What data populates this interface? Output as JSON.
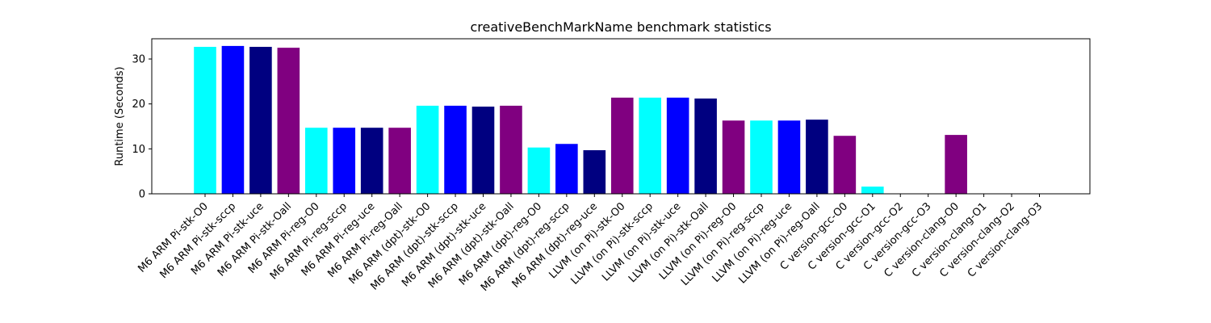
{
  "chart_data": {
    "type": "bar",
    "title": "creativeBenchMarkName benchmark statistics",
    "xlabel": "",
    "ylabel": "Runtime (Seconds)",
    "ylim": [
      0,
      34.5
    ],
    "yticks": [
      0,
      10,
      20,
      30
    ],
    "grid": false,
    "categories": [
      "M6 ARM Pi-stk-O0",
      "M6 ARM Pi-stk-sccp",
      "M6 ARM Pi-stk-uce",
      "M6 ARM Pi-stk-Oall",
      "M6 ARM Pi-reg-O0",
      "M6 ARM Pi-reg-sccp",
      "M6 ARM Pi-reg-uce",
      "M6 ARM Pi-reg-Oall",
      "M6 ARM (dpt)-stk-O0",
      "M6 ARM (dpt)-stk-sccp",
      "M6 ARM (dpt)-stk-uce",
      "M6 ARM (dpt)-stk-Oall",
      "M6 ARM (dpt)-reg-O0",
      "M6 ARM (dpt)-reg-sccp",
      "M6 ARM (dpt)-reg-uce",
      "LLVM (on Pi)-stk-O0",
      "LLVM (on Pi)-stk-sccp",
      "LLVM (on Pi)-stk-uce",
      "LLVM (on Pi)-stk-Oall",
      "LLVM (on Pi)-reg-O0",
      "LLVM (on Pi)-reg-sccp",
      "LLVM (on Pi)-reg-uce",
      "LLVM (on Pi)-reg-Oall",
      "C version-gcc-O0",
      "C version-gcc-O1",
      "C version-gcc-O2",
      "C version-gcc-O3",
      "C version-clang-O0",
      "C version-clang-O1",
      "C version-clang-O2",
      "C version-clang-O3"
    ],
    "values": [
      32.7,
      32.9,
      32.7,
      32.5,
      14.7,
      14.7,
      14.7,
      14.7,
      19.6,
      19.6,
      19.4,
      19.6,
      10.3,
      11.1,
      9.7,
      21.4,
      21.4,
      21.4,
      21.2,
      16.3,
      16.3,
      16.3,
      16.5,
      12.9,
      1.6,
      0,
      0,
      13.1,
      0,
      0,
      0
    ],
    "colors": [
      "#00ffff",
      "#0000ff",
      "#000080",
      "#800080",
      "#00ffff",
      "#0000ff",
      "#000080",
      "#800080",
      "#00ffff",
      "#0000ff",
      "#000080",
      "#800080",
      "#00ffff",
      "#0000ff",
      "#000080",
      "#800080",
      "#00ffff",
      "#0000ff",
      "#000080",
      "#800080",
      "#00ffff",
      "#0000ff",
      "#000080",
      "#800080",
      "#00ffff",
      "#0000ff",
      "#000080",
      "#800080",
      "#00ffff",
      "#0000ff",
      "#000080"
    ]
  }
}
